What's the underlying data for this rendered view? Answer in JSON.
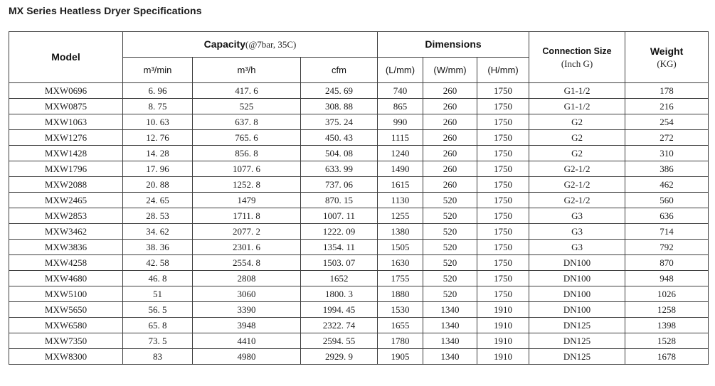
{
  "title": "MX Series Heatless Dryer Specifications",
  "table": {
    "header": {
      "model": "Model",
      "capacity": {
        "label": "Capacity",
        "note": "(@7bar, 35C)",
        "sub": [
          "m³/min",
          "m³/h",
          "cfm"
        ]
      },
      "dimensions": {
        "label": "Dimensions",
        "sub": [
          "(L/mm)",
          "(W/mm)",
          "(H/mm)"
        ]
      },
      "connection": {
        "label": "Connection Size",
        "note": "(Inch G)"
      },
      "weight": {
        "label": "Weight",
        "note": "(KG)"
      }
    },
    "rows": [
      [
        "MXW0696",
        "6. 96",
        "417. 6",
        "245. 69",
        "740",
        "260",
        "1750",
        "G1-1/2",
        "178"
      ],
      [
        "MXW0875",
        "8. 75",
        "525",
        "308. 88",
        "865",
        "260",
        "1750",
        "G1-1/2",
        "216"
      ],
      [
        "MXW1063",
        "10. 63",
        "637. 8",
        "375. 24",
        "990",
        "260",
        "1750",
        "G2",
        "254"
      ],
      [
        "MXW1276",
        "12. 76",
        "765. 6",
        "450. 43",
        "1115",
        "260",
        "1750",
        "G2",
        "272"
      ],
      [
        "MXW1428",
        "14. 28",
        "856. 8",
        "504. 08",
        "1240",
        "260",
        "1750",
        "G2",
        "310"
      ],
      [
        "MXW1796",
        "17. 96",
        "1077. 6",
        "633. 99",
        "1490",
        "260",
        "1750",
        "G2-1/2",
        "386"
      ],
      [
        "MXW2088",
        "20. 88",
        "1252. 8",
        "737. 06",
        "1615",
        "260",
        "1750",
        "G2-1/2",
        "462"
      ],
      [
        "MXW2465",
        "24. 65",
        "1479",
        "870. 15",
        "1130",
        "520",
        "1750",
        "G2-1/2",
        "560"
      ],
      [
        "MXW2853",
        "28. 53",
        "1711. 8",
        "1007. 11",
        "1255",
        "520",
        "1750",
        "G3",
        "636"
      ],
      [
        "MXW3462",
        "34. 62",
        "2077. 2",
        "1222. 09",
        "1380",
        "520",
        "1750",
        "G3",
        "714"
      ],
      [
        "MXW3836",
        "38. 36",
        "2301. 6",
        "1354. 11",
        "1505",
        "520",
        "1750",
        "G3",
        "792"
      ],
      [
        "MXW4258",
        "42. 58",
        "2554. 8",
        "1503. 07",
        "1630",
        "520",
        "1750",
        "DN100",
        "870"
      ],
      [
        "MXW4680",
        "46. 8",
        "2808",
        "1652",
        "1755",
        "520",
        "1750",
        "DN100",
        "948"
      ],
      [
        "MXW5100",
        "51",
        "3060",
        "1800. 3",
        "1880",
        "520",
        "1750",
        "DN100",
        "1026"
      ],
      [
        "MXW5650",
        "56. 5",
        "3390",
        "1994. 45",
        "1530",
        "1340",
        "1910",
        "DN100",
        "1258"
      ],
      [
        "MXW6580",
        "65. 8",
        "3948",
        "2322. 74",
        "1655",
        "1340",
        "1910",
        "DN125",
        "1398"
      ],
      [
        "MXW7350",
        "73. 5",
        "4410",
        "2594. 55",
        "1780",
        "1340",
        "1910",
        "DN125",
        "1528"
      ],
      [
        "MXW8300",
        "83",
        "4980",
        "2929. 9",
        "1905",
        "1340",
        "1910",
        "DN125",
        "1678"
      ]
    ]
  }
}
